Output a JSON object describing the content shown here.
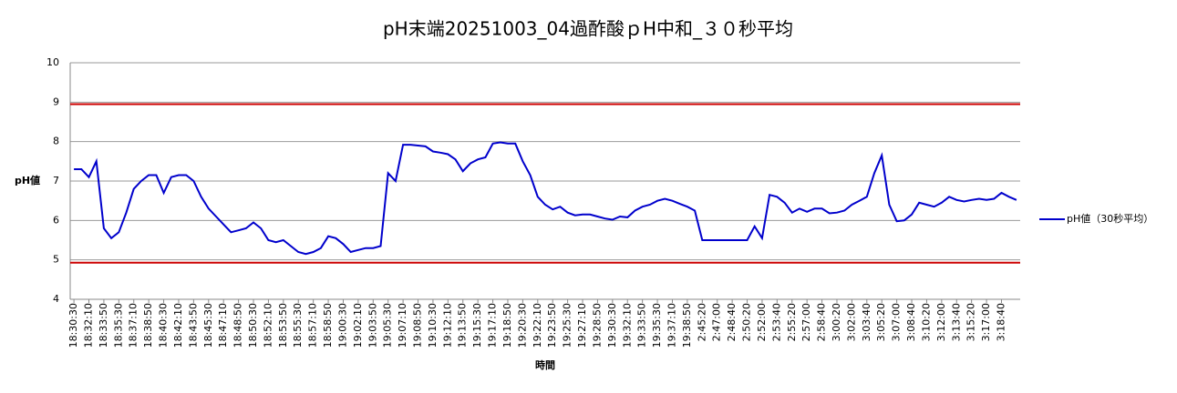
{
  "chart_data": {
    "type": "line",
    "title": "pH末端20251003_04過酢酸ｐH中和_３０秒平均",
    "x_label": "時間",
    "y_label": "pH値",
    "categories": [
      "18:30:30",
      null,
      "18:32:10",
      null,
      "18:33:50",
      null,
      "18:35:30",
      null,
      "18:37:10",
      null,
      "18:38:50",
      null,
      "18:40:30",
      null,
      "18:42:10",
      null,
      "18:43:50",
      null,
      "18:45:30",
      null,
      "18:47:10",
      null,
      "18:48:50",
      null,
      "18:50:30",
      null,
      "18:52:10",
      null,
      "18:53:50",
      null,
      "18:55:30",
      null,
      "18:57:10",
      null,
      "18:58:50",
      null,
      "19:00:30",
      null,
      "19:02:10",
      null,
      "19:03:50",
      null,
      "19:05:30",
      null,
      "19:07:10",
      null,
      "19:08:50",
      null,
      "19:10:30",
      null,
      "19:12:10",
      null,
      "19:13:50",
      null,
      "19:15:30",
      null,
      "19:17:10",
      null,
      "19:18:50",
      null,
      "19:20:30",
      null,
      "19:22:10",
      null,
      "19:23:50",
      null,
      "19:25:30",
      null,
      "19:27:10",
      null,
      "19:28:50",
      null,
      "19:30:30",
      null,
      "19:32:10",
      null,
      "19:33:50",
      null,
      "19:35:30",
      null,
      "19:37:10",
      null,
      "19:38:50",
      null,
      "2:45:20",
      null,
      "2:47:00",
      null,
      "2:48:40",
      null,
      "2:50:20",
      null,
      "2:52:00",
      null,
      "2:53:40",
      null,
      "2:55:20",
      null,
      "2:57:00",
      null,
      "2:58:40",
      null,
      "3:00:20",
      null,
      "3:02:00",
      null,
      "3:03:40",
      null,
      "3:05:20",
      null,
      "3:07:00",
      null,
      "3:08:40",
      null,
      "3:10:20",
      null,
      "3:12:00",
      null,
      "3:13:40",
      null,
      "3:15:20",
      null,
      "3:17:00",
      null,
      "3:18:40",
      null,
      null
    ],
    "series": [
      {
        "name": "pH値（30秒平均）",
        "color": "#0000cc",
        "values": [
          7.3,
          7.3,
          7.1,
          7.5,
          5.8,
          5.55,
          5.7,
          6.2,
          6.8,
          7.0,
          7.15,
          7.15,
          6.7,
          7.1,
          7.15,
          7.15,
          7.0,
          6.6,
          6.3,
          6.1,
          5.9,
          5.7,
          5.75,
          5.8,
          5.95,
          5.8,
          5.5,
          5.45,
          5.5,
          5.35,
          5.2,
          5.15,
          5.2,
          5.3,
          5.6,
          5.55,
          5.4,
          5.2,
          5.25,
          5.3,
          5.3,
          5.35,
          7.2,
          7.0,
          7.92,
          7.92,
          7.9,
          7.88,
          7.75,
          7.72,
          7.68,
          7.55,
          7.25,
          7.45,
          7.55,
          7.6,
          7.95,
          7.98,
          7.95,
          7.95,
          7.5,
          7.15,
          6.6,
          6.4,
          6.28,
          6.35,
          6.2,
          6.13,
          6.15,
          6.15,
          6.1,
          6.05,
          6.02,
          6.1,
          6.08,
          6.25,
          6.35,
          6.4,
          6.5,
          6.55,
          6.5,
          6.42,
          6.35,
          6.25,
          5.5,
          5.5,
          5.5,
          5.5,
          5.5,
          5.5,
          5.5,
          5.85,
          5.55,
          6.65,
          6.6,
          6.45,
          6.2,
          6.3,
          6.22,
          6.3,
          6.3,
          6.18,
          6.2,
          6.25,
          6.4,
          6.5,
          6.6,
          7.2,
          7.65,
          6.4,
          5.98,
          6.0,
          6.15,
          6.45,
          6.4,
          6.35,
          6.45,
          6.6,
          6.52,
          6.48,
          6.52,
          6.55,
          6.52,
          6.55,
          6.7,
          6.6,
          6.52
        ]
      }
    ],
    "reference_lines": [
      {
        "value": 8.95,
        "color": "#cc0000"
      },
      {
        "value": 4.93,
        "color": "#cc0000"
      }
    ],
    "ylim": [
      4,
      10
    ],
    "yticks": [
      4,
      5,
      6,
      7,
      8,
      9,
      10
    ],
    "grid": true,
    "legend": "right"
  }
}
